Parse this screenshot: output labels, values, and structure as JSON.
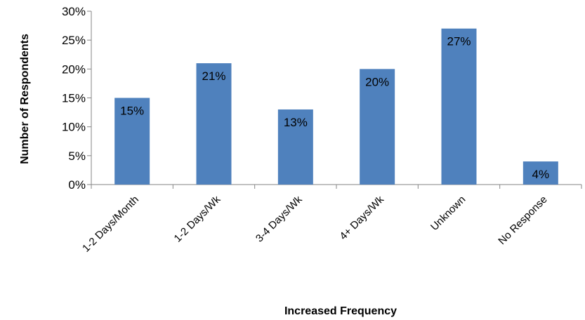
{
  "chart_data": {
    "type": "bar",
    "categories": [
      "1-2 Days/Month",
      "1-2 Days/Wk",
      "3-4 Days/Wk",
      "4+ Days/Wk",
      "Unknown",
      "No Response"
    ],
    "values": [
      15,
      21,
      13,
      20,
      27,
      4
    ],
    "data_labels": [
      "15%",
      "21%",
      "13%",
      "20%",
      "27%",
      "4%"
    ],
    "title": "",
    "xlabel": "Increased Frequency",
    "ylabel": "Number of Respondents",
    "ylim": [
      0,
      30
    ],
    "y_ticks": [
      0,
      5,
      10,
      15,
      20,
      25,
      30
    ],
    "y_tick_labels": [
      "0%",
      "5%",
      "10%",
      "15%",
      "20%",
      "25%",
      "30%"
    ],
    "grid": false,
    "legend": "none",
    "bar_color": "#4F81BD"
  }
}
